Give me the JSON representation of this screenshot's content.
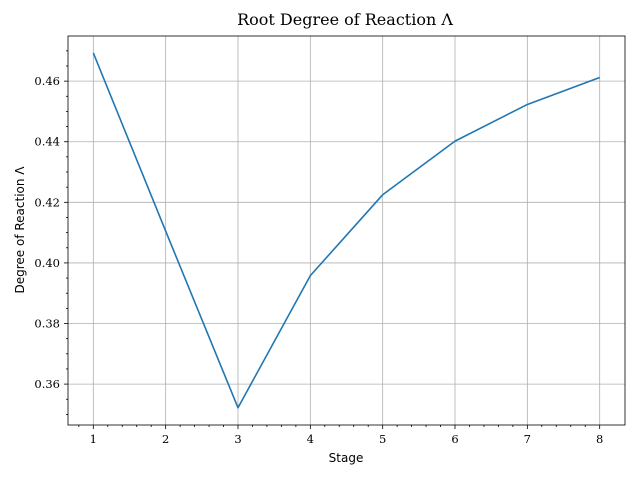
{
  "chart_data": {
    "type": "line",
    "title": "Root Degree of Reaction Λ",
    "xlabel": "Stage",
    "ylabel": "Degree of Reaction Λ",
    "x": [
      1,
      2,
      3,
      4,
      5,
      6,
      7,
      8
    ],
    "series": [
      {
        "values": [
          0.4693,
          0.4105,
          0.3522,
          0.3958,
          0.4225,
          0.4402,
          0.4523,
          0.4612
        ],
        "color": "#1f77b4"
      }
    ],
    "xlim": [
      0.65,
      8.35
    ],
    "ylim": [
      0.3465,
      0.4749
    ],
    "xticks": [
      1,
      2,
      3,
      4,
      5,
      6,
      7,
      8
    ],
    "yticks": [
      0.36,
      0.38,
      0.4,
      0.42,
      0.44,
      0.46
    ],
    "ytick_labels": [
      "0.36",
      "0.38",
      "0.40",
      "0.42",
      "0.44",
      "0.46"
    ],
    "grid": true
  }
}
